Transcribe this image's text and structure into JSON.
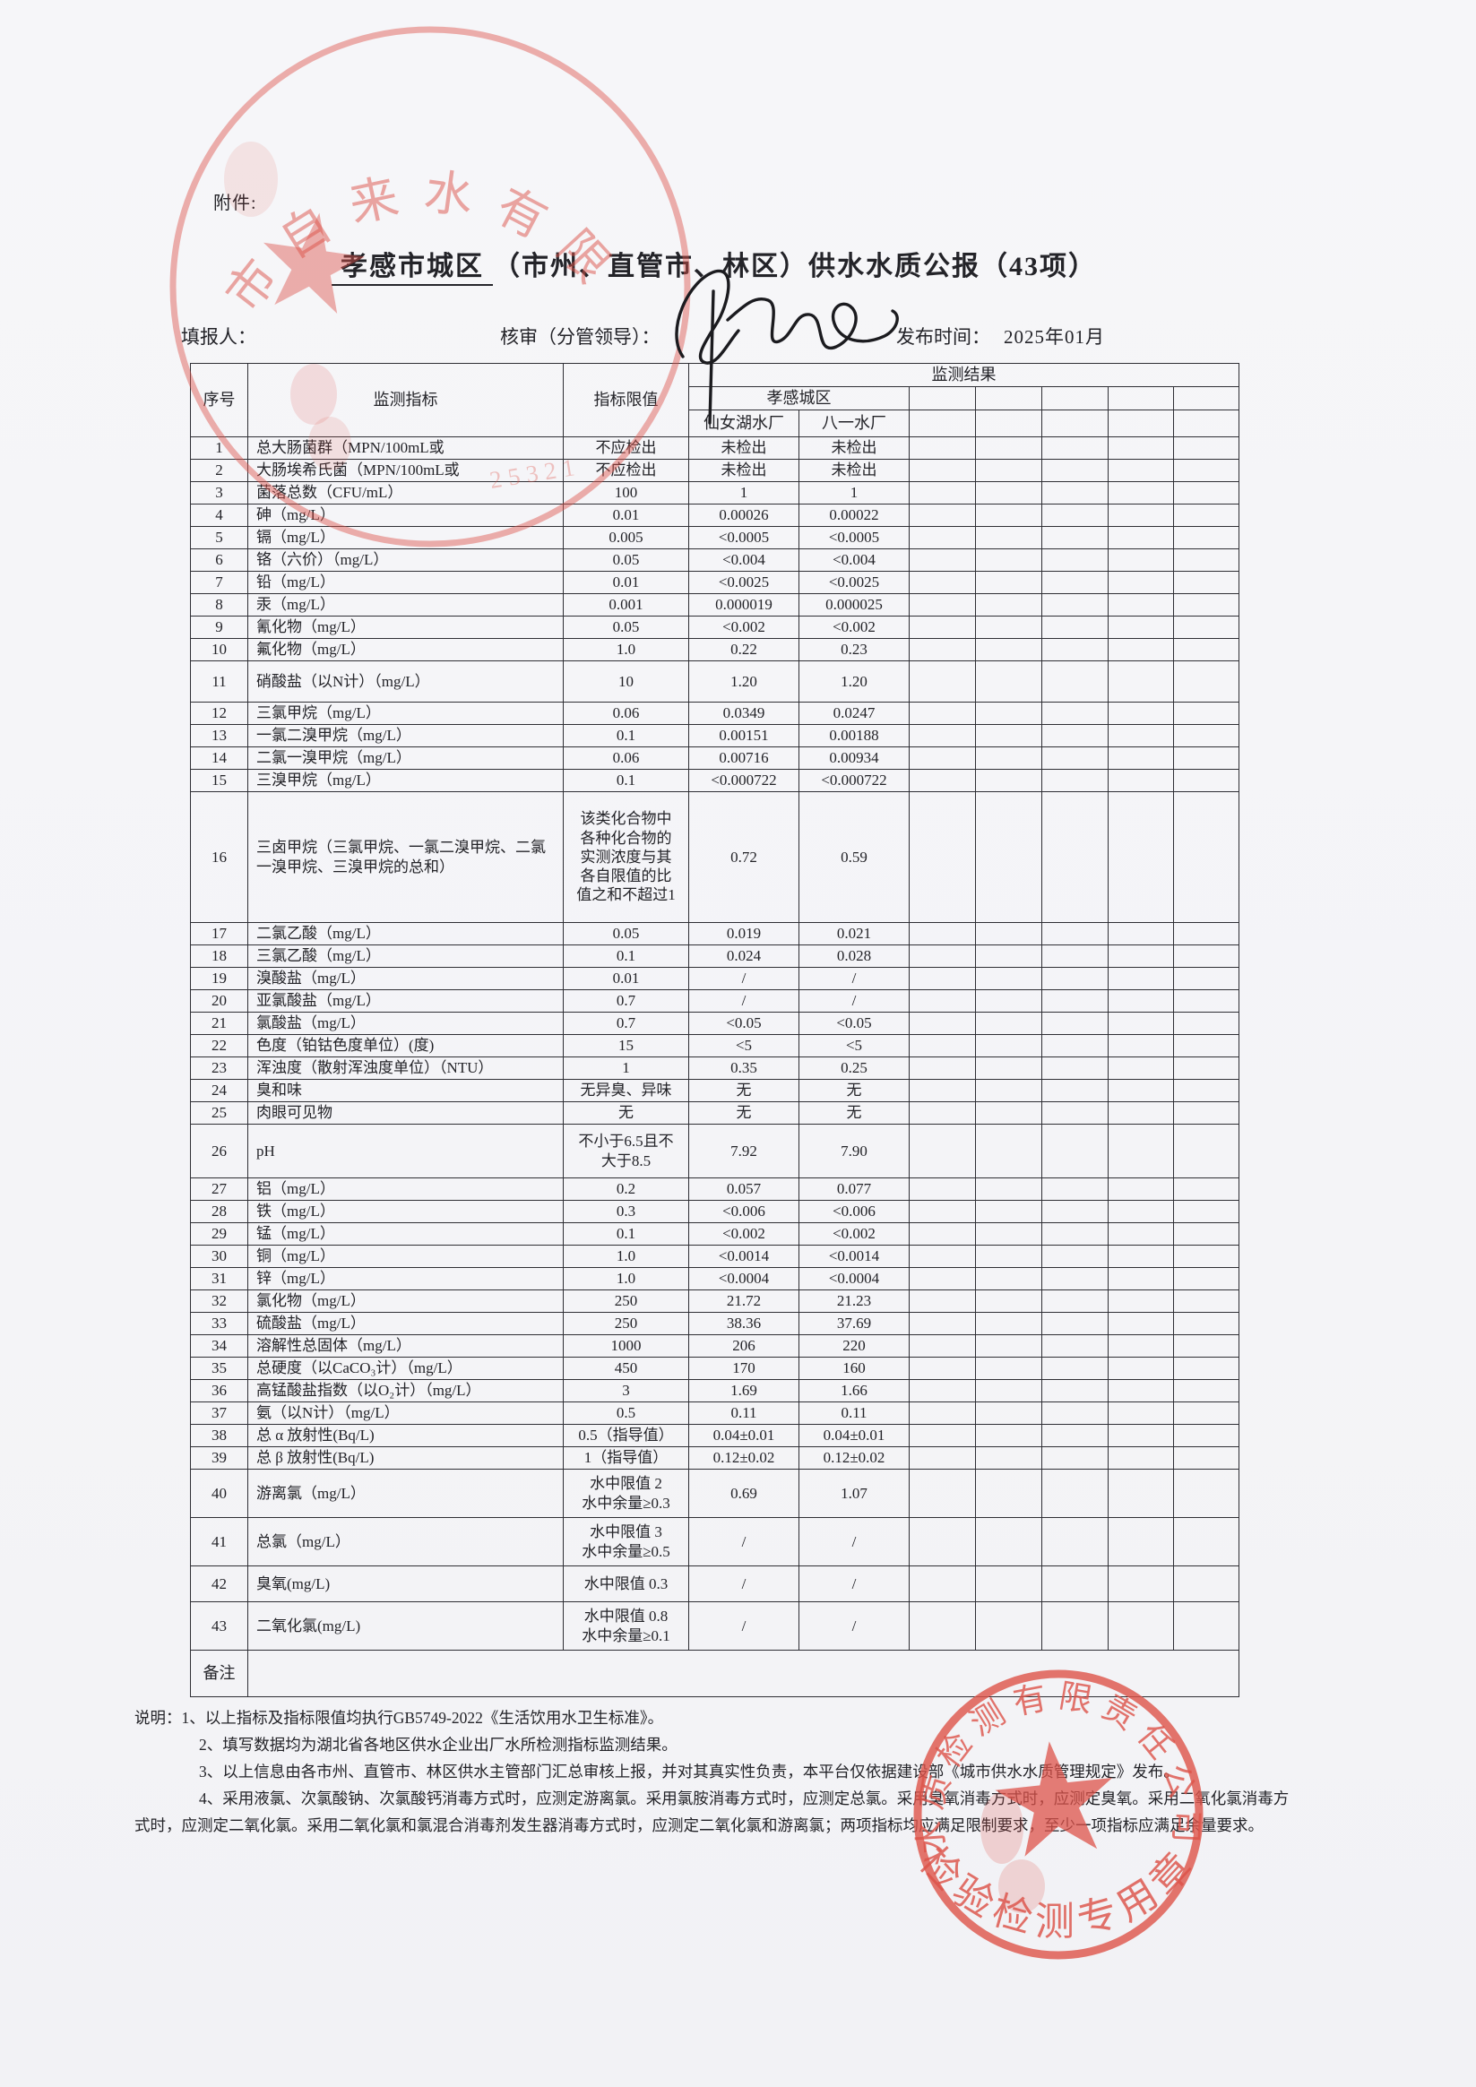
{
  "page": {
    "attachment_label": "附件:",
    "title": {
      "region": "孝感市城区",
      "rest": "（市州、直管市、林区）供水水质公报（43项）"
    },
    "meta": {
      "filler_label": "填报人：",
      "reviewer_label": "核审（分管领导）：",
      "publish_label": "发布时间：",
      "publish_value": "2025年01月"
    }
  },
  "table": {
    "headers": {
      "no": "序号",
      "indicator": "监测指标",
      "limit": "指标限值",
      "results": "监测结果",
      "region": "孝感城区",
      "plants": [
        "仙女湖水厂",
        "八一水厂"
      ]
    },
    "remark_label": "备注",
    "rows": [
      {
        "no": "1",
        "indicator": "总大肠菌群（MPN/100mL或",
        "limit": "不应检出",
        "values": [
          "未检出",
          "未检出"
        ]
      },
      {
        "no": "2",
        "indicator": "大肠埃希氏菌（MPN/100mL或",
        "limit": "不应检出",
        "values": [
          "未检出",
          "未检出"
        ]
      },
      {
        "no": "3",
        "indicator": "菌落总数（CFU/mL）",
        "limit": "100",
        "values": [
          "1",
          "1"
        ]
      },
      {
        "no": "4",
        "indicator": "砷（mg/L）",
        "limit": "0.01",
        "values": [
          "0.00026",
          "0.00022"
        ]
      },
      {
        "no": "5",
        "indicator": "镉（mg/L）",
        "limit": "0.005",
        "values": [
          "<0.0005",
          "<0.0005"
        ]
      },
      {
        "no": "6",
        "indicator": "铬（六价）（mg/L）",
        "limit": "0.05",
        "values": [
          "<0.004",
          "<0.004"
        ]
      },
      {
        "no": "7",
        "indicator": "铅（mg/L）",
        "limit": "0.01",
        "values": [
          "<0.0025",
          "<0.0025"
        ]
      },
      {
        "no": "8",
        "indicator": "汞（mg/L）",
        "limit": "0.001",
        "values": [
          "0.000019",
          "0.000025"
        ]
      },
      {
        "no": "9",
        "indicator": "氰化物（mg/L）",
        "limit": "0.05",
        "values": [
          "<0.002",
          "<0.002"
        ]
      },
      {
        "no": "10",
        "indicator": "氟化物（mg/L）",
        "limit": "1.0",
        "values": [
          "0.22",
          "0.23"
        ]
      },
      {
        "no": "11",
        "indicator": "硝酸盐（以N计）（mg/L）",
        "limit": "10",
        "values": [
          "1.20",
          "1.20"
        ]
      },
      {
        "no": "12",
        "indicator": "三氯甲烷（mg/L）",
        "limit": "0.06",
        "values": [
          "0.0349",
          "0.0247"
        ]
      },
      {
        "no": "13",
        "indicator": "一氯二溴甲烷（mg/L）",
        "limit": "0.1",
        "values": [
          "0.00151",
          "0.00188"
        ]
      },
      {
        "no": "14",
        "indicator": "二氯一溴甲烷（mg/L）",
        "limit": "0.06",
        "values": [
          "0.00716",
          "0.00934"
        ]
      },
      {
        "no": "15",
        "indicator": "三溴甲烷（mg/L）",
        "limit": "0.1",
        "values": [
          "<0.000722",
          "<0.000722"
        ]
      },
      {
        "no": "16",
        "indicator": "三卤甲烷（三氯甲烷、一氯二溴甲烷、二氯一溴甲烷、三溴甲烷的总和）",
        "limit": "该类化合物中\n各种化合物的\n实测浓度与其\n各自限值的比\n值之和不超过1",
        "values": [
          "0.72",
          "0.59"
        ]
      },
      {
        "no": "17",
        "indicator": "二氯乙酸（mg/L）",
        "limit": "0.05",
        "values": [
          "0.019",
          "0.021"
        ]
      },
      {
        "no": "18",
        "indicator": "三氯乙酸（mg/L）",
        "limit": "0.1",
        "values": [
          "0.024",
          "0.028"
        ]
      },
      {
        "no": "19",
        "indicator": "溴酸盐（mg/L）",
        "limit": "0.01",
        "values": [
          "/",
          "/"
        ]
      },
      {
        "no": "20",
        "indicator": "亚氯酸盐（mg/L）",
        "limit": "0.7",
        "values": [
          "/",
          "/"
        ]
      },
      {
        "no": "21",
        "indicator": "氯酸盐（mg/L）",
        "limit": "0.7",
        "values": [
          "<0.05",
          "<0.05"
        ]
      },
      {
        "no": "22",
        "indicator": "色度（铂钴色度单位）(度)",
        "limit": "15",
        "values": [
          "<5",
          "<5"
        ]
      },
      {
        "no": "23",
        "indicator": "浑浊度（散射浑浊度单位）（NTU）",
        "limit": "1",
        "values": [
          "0.35",
          "0.25"
        ]
      },
      {
        "no": "24",
        "indicator": "臭和味",
        "limit": "无异臭、异味",
        "values": [
          "无",
          "无"
        ]
      },
      {
        "no": "25",
        "indicator": "肉眼可见物",
        "limit": "无",
        "values": [
          "无",
          "无"
        ]
      },
      {
        "no": "26",
        "indicator": "pH",
        "limit": "不小于6.5且不\n大于8.5",
        "values": [
          "7.92",
          "7.90"
        ]
      },
      {
        "no": "27",
        "indicator": "铝（mg/L）",
        "limit": "0.2",
        "values": [
          "0.057",
          "0.077"
        ]
      },
      {
        "no": "28",
        "indicator": "铁（mg/L）",
        "limit": "0.3",
        "values": [
          "<0.006",
          "<0.006"
        ]
      },
      {
        "no": "29",
        "indicator": "锰（mg/L）",
        "limit": "0.1",
        "values": [
          "<0.002",
          "<0.002"
        ]
      },
      {
        "no": "30",
        "indicator": "铜（mg/L）",
        "limit": "1.0",
        "values": [
          "<0.0014",
          "<0.0014"
        ]
      },
      {
        "no": "31",
        "indicator": "锌（mg/L）",
        "limit": "1.0",
        "values": [
          "<0.0004",
          "<0.0004"
        ]
      },
      {
        "no": "32",
        "indicator": "氯化物（mg/L）",
        "limit": "250",
        "values": [
          "21.72",
          "21.23"
        ]
      },
      {
        "no": "33",
        "indicator": "硫酸盐（mg/L）",
        "limit": "250",
        "values": [
          "38.36",
          "37.69"
        ]
      },
      {
        "no": "34",
        "indicator": "溶解性总固体（mg/L）",
        "limit": "1000",
        "values": [
          "206",
          "220"
        ]
      },
      {
        "no": "35",
        "indicator": "总硬度（以CaCO₃计）（mg/L）",
        "limit": "450",
        "values": [
          "170",
          "160"
        ]
      },
      {
        "no": "36",
        "indicator": "高锰酸盐指数（以O₂计）（mg/L）",
        "limit": "3",
        "values": [
          "1.69",
          "1.66"
        ]
      },
      {
        "no": "37",
        "indicator": "氨（以N计）（mg/L）",
        "limit": "0.5",
        "values": [
          "0.11",
          "0.11"
        ]
      },
      {
        "no": "38",
        "indicator": "总 α 放射性(Bq/L)",
        "limit": "0.5（指导值）",
        "values": [
          "0.04±0.01",
          "0.04±0.01"
        ]
      },
      {
        "no": "39",
        "indicator": "总 β 放射性(Bq/L)",
        "limit": "1（指导值）",
        "values": [
          "0.12±0.02",
          "0.12±0.02"
        ]
      },
      {
        "no": "40",
        "indicator": "游离氯（mg/L）",
        "limit": "水中限值 2\n水中余量≥0.3",
        "values": [
          "0.69",
          "1.07"
        ]
      },
      {
        "no": "41",
        "indicator": "总氯（mg/L）",
        "limit": "水中限值 3\n水中余量≥0.5",
        "values": [
          "/",
          "/"
        ]
      },
      {
        "no": "42",
        "indicator": "臭氧(mg/L)",
        "limit": "水中限值 0.3",
        "values": [
          "/",
          "/"
        ]
      },
      {
        "no": "43",
        "indicator": "二氧化氯(mg/L)",
        "limit": "水中限值 0.8\n水中余量≥0.1",
        "values": [
          "/",
          "/"
        ]
      }
    ]
  },
  "notes": {
    "label": "说明：",
    "line1": "1、以上指标及指标限值均执行GB5749-2022《生活饮用水卫生标准》。",
    "line2": "2、填写数据均为湖北省各地区供水企业出厂水所检测指标监测结果。",
    "line3": "3、以上信息由各市州、直管市、林区供水主管部门汇总审核上报，并对其真实性负责，本平台仅依据建设部《城市供水水质管理规定》发布。",
    "line4": "4、采用液氯、次氯酸钠、次氯酸钙消毒方式时，应测定游离氯。采用氯胺消毒方式时，应测定总氯。采用臭氧消毒方式时，应测定臭氧。采用二氧化氯消毒方式时，应测定二氧化氯。采用二氧化氯和氯混合消毒剂发生器消毒方式时，应测定二氧化氯和游离氯；两项指标均应满足限制要求，至少一项指标应满足余量要求。"
  },
  "stamps": {
    "top_seal": {
      "arc_text": "市自来水有限",
      "code_text": "25321"
    },
    "bottom_seal": {
      "arc_text": "水质检测有限责任公司",
      "banner_text": "检验检测专用章"
    }
  },
  "colors": {
    "seal_red": "#dd5349",
    "ink": "#232328",
    "paper": "#f6f6f9"
  }
}
